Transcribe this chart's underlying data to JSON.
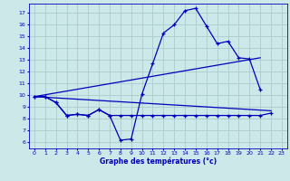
{
  "background_color": "#cce8e8",
  "grid_color": "#aacccc",
  "line_color": "#0000bb",
  "xlabel": "Graphe des températures (°c)",
  "ylim": [
    5.5,
    17.8
  ],
  "yticks": [
    6,
    7,
    8,
    9,
    10,
    11,
    12,
    13,
    14,
    15,
    16,
    17
  ],
  "xlim": [
    -0.5,
    23.5
  ],
  "xticks": [
    0,
    1,
    2,
    3,
    4,
    5,
    6,
    7,
    8,
    9,
    10,
    11,
    12,
    13,
    14,
    15,
    16,
    17,
    18,
    19,
    20,
    21,
    22,
    23
  ],
  "series1_x": [
    0,
    1,
    2,
    3,
    4,
    5,
    6,
    7,
    8,
    9,
    10,
    11,
    12,
    13,
    14,
    15,
    16,
    17,
    18,
    19,
    20,
    21
  ],
  "series1_y": [
    9.9,
    9.9,
    9.4,
    8.3,
    8.4,
    8.3,
    8.8,
    8.3,
    6.2,
    6.3,
    10.1,
    12.7,
    15.3,
    16.0,
    17.2,
    17.4,
    15.9,
    14.4,
    14.6,
    13.2,
    13.1,
    10.5
  ],
  "series2_x": [
    0,
    1,
    2,
    3,
    4,
    5,
    6,
    7,
    8,
    9,
    10,
    11,
    12,
    13,
    14,
    15,
    16,
    17,
    18,
    19,
    20,
    21,
    22
  ],
  "series2_y": [
    9.9,
    9.9,
    9.4,
    8.3,
    8.4,
    8.3,
    8.8,
    8.3,
    8.3,
    8.3,
    8.3,
    8.3,
    8.3,
    8.3,
    8.3,
    8.3,
    8.3,
    8.3,
    8.3,
    8.3,
    8.3,
    8.3,
    8.5
  ],
  "series3_x": [
    0,
    21
  ],
  "series3_y": [
    9.9,
    13.2
  ],
  "series4_x": [
    0,
    22
  ],
  "series4_y": [
    9.9,
    8.7
  ]
}
